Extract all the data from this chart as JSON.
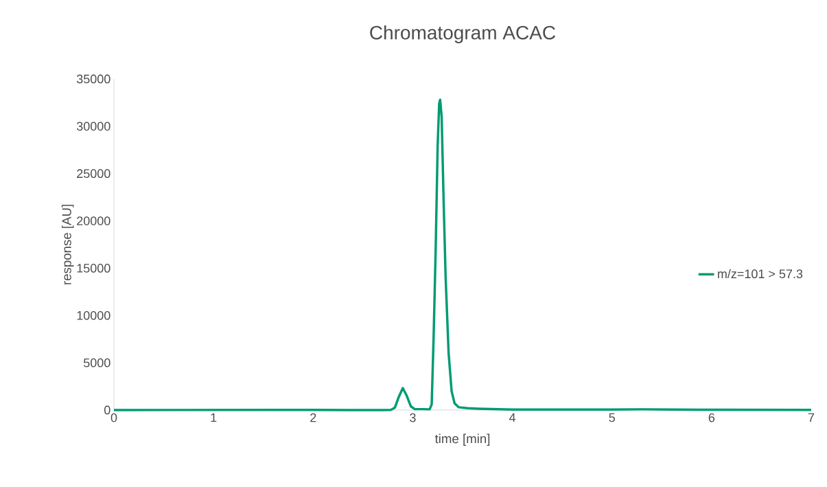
{
  "chart_data": {
    "type": "line",
    "title": "Chromatogram ACAC",
    "xlabel": "time [min]",
    "ylabel": "response [AU]",
    "x": [
      0,
      1.7,
      2.0,
      2.7,
      2.78,
      2.82,
      2.86,
      2.9,
      2.94,
      2.98,
      3.02,
      3.1,
      3.17,
      3.19,
      3.21,
      3.23,
      3.25,
      3.265,
      3.275,
      3.29,
      3.31,
      3.33,
      3.36,
      3.39,
      3.42,
      3.46,
      3.55,
      3.65,
      4.0,
      5.0,
      5.3,
      5.6,
      6.0,
      7.0
    ],
    "series": [
      {
        "name": "m/z=101 > 57.3",
        "color": "#009b72",
        "values": [
          0,
          20,
          10,
          0,
          20,
          250,
          1400,
          2320,
          1500,
          400,
          100,
          100,
          80,
          600,
          8000,
          17000,
          28000,
          32400,
          32800,
          31000,
          22000,
          14000,
          6000,
          2000,
          700,
          300,
          200,
          150,
          50,
          60,
          80,
          50,
          30,
          20
        ]
      }
    ],
    "xlim": [
      0,
      7
    ],
    "ylim": [
      0,
      35000
    ],
    "xticks": [
      0,
      1,
      2,
      3,
      4,
      5,
      6,
      7
    ],
    "yticks": [
      0,
      5000,
      10000,
      15000,
      20000,
      25000,
      30000,
      35000
    ],
    "legend": "right",
    "marker": "none",
    "line_style": "solid",
    "grid": false
  }
}
